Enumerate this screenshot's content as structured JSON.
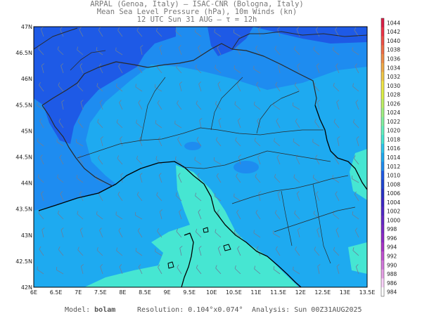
{
  "header": {
    "line1": "ARPAL (Genoa, Italy)  —  ISAC-CNR (Bologna, Italy)",
    "line2": "Mean Sea Level Pressure (hPa), 10m Winds (kn)",
    "line3": "12 UTC Sun 31 AUG  —  τ = 12h"
  },
  "axes": {
    "lat_labels": [
      "47N",
      "46.5N",
      "46N",
      "45.5N",
      "45N",
      "44.5N",
      "44N",
      "43.5N",
      "43N",
      "42.5N",
      "42N"
    ],
    "lon_labels": [
      "6E",
      "6.5E",
      "7E",
      "7.5E",
      "8E",
      "8.5E",
      "9E",
      "9.5E",
      "10E",
      "10.5E",
      "11E",
      "11.5E",
      "12E",
      "12.5E",
      "13E",
      "13.5E"
    ]
  },
  "colorbar": {
    "levels": [
      "984",
      "986",
      "988",
      "990",
      "992",
      "994",
      "996",
      "998",
      "1000",
      "1002",
      "1004",
      "1006",
      "1008",
      "1010",
      "1012",
      "1014",
      "1016",
      "1018",
      "1020",
      "1022",
      "1024",
      "1026",
      "1028",
      "1030",
      "1032",
      "1034",
      "1036",
      "1038",
      "1040",
      "1042",
      "1044"
    ],
    "colors": {
      "984": "#ffffff",
      "986": "#fad2fa",
      "988": "#e6a0e6",
      "990": "#d278dc",
      "992": "#c050d2",
      "994": "#a832c8",
      "996": "#8c28c8",
      "998": "#7828c8",
      "1000": "#6428c8",
      "1002": "#5028c8",
      "1004": "#3c28c8",
      "1006": "#2832c8",
      "1008": "#1e46d2",
      "1010": "#1e5ae6",
      "1012": "#1e8cf0",
      "1014": "#1eaaf0",
      "1016": "#2cc6ee",
      "1018": "#46e6d2",
      "1020": "#64f0be",
      "1022": "#82f0a0",
      "1024": "#a0f082",
      "1026": "#bef064",
      "1028": "#dcf046",
      "1030": "#f0e646",
      "1032": "#f0c846",
      "1034": "#f0aa46",
      "1036": "#f08c46",
      "1038": "#f06e46",
      "1040": "#f05046",
      "1042": "#f03246",
      "1044": "#dc1e46"
    }
  },
  "map_colors": {
    "band_1010": "#1e5ae6",
    "band_1012": "#1e8cf0",
    "band_1014": "#1eaaf0",
    "band_1016": "#2cc6ee",
    "band_1018": "#46e6d2",
    "coast": "#000000",
    "border": "#2a2a2a"
  },
  "footer": {
    "model_label": "Model:",
    "model_value": "bolam",
    "resolution_label": "Resolution:",
    "resolution_value": "0.104°x0.074°",
    "analysis_label": "Analysis:",
    "analysis_value": "Sun 00Z31AUG2025"
  }
}
